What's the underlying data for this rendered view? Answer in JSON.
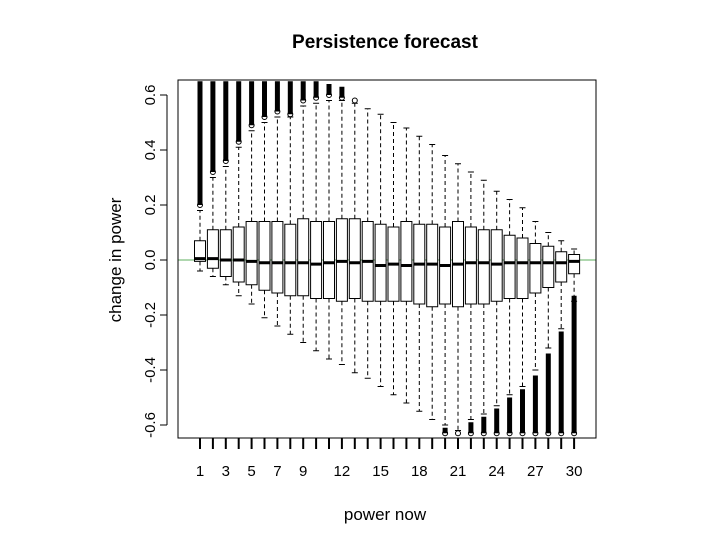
{
  "chart_data": {
    "type": "boxplot",
    "title": "Persistence forecast",
    "xlabel": "power now",
    "ylabel": "change in power",
    "categories": [
      "1",
      "2",
      "3",
      "4",
      "5",
      "6",
      "7",
      "8",
      "9",
      "10",
      "11",
      "12",
      "13",
      "14",
      "15",
      "16",
      "17",
      "18",
      "19",
      "20",
      "21",
      "22",
      "23",
      "24",
      "25",
      "26",
      "27",
      "28",
      "29",
      "30"
    ],
    "x_tick_labels": [
      "1",
      "3",
      "5",
      "7",
      "9",
      "12",
      "15",
      "18",
      "21",
      "24",
      "27",
      "30"
    ],
    "y_ticks": [
      "-0.6",
      "-0.4",
      "-0.2",
      "0.0",
      "0.2",
      "0.4",
      "0.6"
    ],
    "ylim": [
      -0.65,
      0.65
    ],
    "reference_line": {
      "value": 0.0,
      "color": "#7fbf7f"
    },
    "boxes": [
      {
        "cat": "1",
        "q1": -0.005,
        "median": 0.005,
        "q3": 0.07,
        "wlo": -0.04,
        "whi": 0.18,
        "out_lo": [],
        "out_hi": [
          0.2,
          0.65
        ]
      },
      {
        "cat": "2",
        "q1": -0.03,
        "median": 0.005,
        "q3": 0.11,
        "wlo": -0.06,
        "whi": 0.3,
        "out_lo": [],
        "out_hi": [
          0.32,
          0.65
        ]
      },
      {
        "cat": "3",
        "q1": -0.06,
        "median": 0.0,
        "q3": 0.11,
        "wlo": -0.09,
        "whi": 0.34,
        "out_lo": [],
        "out_hi": [
          0.36,
          0.65
        ]
      },
      {
        "cat": "4",
        "q1": -0.08,
        "median": 0.0,
        "q3": 0.12,
        "wlo": -0.13,
        "whi": 0.41,
        "out_lo": [],
        "out_hi": [
          0.43,
          0.65
        ]
      },
      {
        "cat": "5",
        "q1": -0.09,
        "median": -0.005,
        "q3": 0.14,
        "wlo": -0.16,
        "whi": 0.47,
        "out_lo": [],
        "out_hi": [
          0.49,
          0.65
        ]
      },
      {
        "cat": "6",
        "q1": -0.11,
        "median": -0.01,
        "q3": 0.14,
        "wlo": -0.21,
        "whi": 0.5,
        "out_lo": [],
        "out_hi": [
          0.52,
          0.65
        ]
      },
      {
        "cat": "7",
        "q1": -0.12,
        "median": -0.01,
        "q3": 0.14,
        "wlo": -0.24,
        "whi": 0.52,
        "out_lo": [],
        "out_hi": [
          0.54,
          0.65
        ]
      },
      {
        "cat": "8",
        "q1": -0.13,
        "median": -0.01,
        "q3": 0.13,
        "wlo": -0.27,
        "whi": 0.52,
        "out_lo": [],
        "out_hi": [
          0.53,
          0.65
        ]
      },
      {
        "cat": "9",
        "q1": -0.13,
        "median": -0.01,
        "q3": 0.15,
        "wlo": -0.3,
        "whi": 0.56,
        "out_lo": [],
        "out_hi": [
          0.58,
          0.65
        ]
      },
      {
        "cat": "10",
        "q1": -0.14,
        "median": -0.015,
        "q3": 0.14,
        "wlo": -0.33,
        "whi": 0.57,
        "out_lo": [],
        "out_hi": [
          0.59,
          0.65
        ]
      },
      {
        "cat": "11",
        "q1": -0.14,
        "median": -0.01,
        "q3": 0.14,
        "wlo": -0.36,
        "whi": 0.58,
        "out_lo": [],
        "out_hi": [
          0.6,
          0.64
        ]
      },
      {
        "cat": "12",
        "q1": -0.15,
        "median": -0.005,
        "q3": 0.15,
        "wlo": -0.38,
        "whi": 0.58,
        "out_lo": [],
        "out_hi": [
          0.59,
          0.63
        ]
      },
      {
        "cat": "13",
        "q1": -0.14,
        "median": -0.01,
        "q3": 0.15,
        "wlo": -0.41,
        "whi": 0.57,
        "out_lo": [],
        "out_hi": [
          0.58
        ]
      },
      {
        "cat": "14",
        "q1": -0.15,
        "median": -0.005,
        "q3": 0.14,
        "wlo": -0.43,
        "whi": 0.55,
        "out_lo": [],
        "out_hi": []
      },
      {
        "cat": "15",
        "q1": -0.15,
        "median": -0.02,
        "q3": 0.13,
        "wlo": -0.46,
        "whi": 0.53,
        "out_lo": [],
        "out_hi": []
      },
      {
        "cat": "16",
        "q1": -0.15,
        "median": -0.015,
        "q3": 0.12,
        "wlo": -0.49,
        "whi": 0.5,
        "out_lo": [],
        "out_hi": []
      },
      {
        "cat": "17",
        "q1": -0.15,
        "median": -0.02,
        "q3": 0.14,
        "wlo": -0.52,
        "whi": 0.48,
        "out_lo": [],
        "out_hi": []
      },
      {
        "cat": "18",
        "q1": -0.16,
        "median": -0.015,
        "q3": 0.13,
        "wlo": -0.55,
        "whi": 0.45,
        "out_lo": [],
        "out_hi": []
      },
      {
        "cat": "19",
        "q1": -0.17,
        "median": -0.015,
        "q3": 0.13,
        "wlo": -0.58,
        "whi": 0.42,
        "out_lo": [],
        "out_hi": []
      },
      {
        "cat": "20",
        "q1": -0.16,
        "median": -0.02,
        "q3": 0.12,
        "wlo": -0.6,
        "whi": 0.38,
        "out_lo": [
          -0.61,
          -0.63
        ],
        "out_hi": []
      },
      {
        "cat": "21",
        "q1": -0.17,
        "median": -0.015,
        "q3": 0.14,
        "wlo": -0.62,
        "whi": 0.35,
        "out_lo": [
          -0.63
        ],
        "out_hi": []
      },
      {
        "cat": "22",
        "q1": -0.16,
        "median": -0.01,
        "q3": 0.12,
        "wlo": -0.58,
        "whi": 0.32,
        "out_lo": [
          -0.59,
          -0.63
        ],
        "out_hi": []
      },
      {
        "cat": "23",
        "q1": -0.16,
        "median": -0.01,
        "q3": 0.11,
        "wlo": -0.56,
        "whi": 0.29,
        "out_lo": [
          -0.57,
          -0.63
        ],
        "out_hi": []
      },
      {
        "cat": "24",
        "q1": -0.15,
        "median": -0.015,
        "q3": 0.11,
        "wlo": -0.53,
        "whi": 0.25,
        "out_lo": [
          -0.54,
          -0.63
        ],
        "out_hi": []
      },
      {
        "cat": "25",
        "q1": -0.14,
        "median": -0.01,
        "q3": 0.09,
        "wlo": -0.49,
        "whi": 0.22,
        "out_lo": [
          -0.5,
          -0.63
        ],
        "out_hi": []
      },
      {
        "cat": "26",
        "q1": -0.14,
        "median": -0.01,
        "q3": 0.08,
        "wlo": -0.46,
        "whi": 0.19,
        "out_lo": [
          -0.47,
          -0.63
        ],
        "out_hi": []
      },
      {
        "cat": "27",
        "q1": -0.12,
        "median": -0.01,
        "q3": 0.06,
        "wlo": -0.4,
        "whi": 0.14,
        "out_lo": [
          -0.42,
          -0.63
        ],
        "out_hi": []
      },
      {
        "cat": "28",
        "q1": -0.1,
        "median": -0.01,
        "q3": 0.05,
        "wlo": -0.32,
        "whi": 0.1,
        "out_lo": [
          -0.34,
          -0.63
        ],
        "out_hi": []
      },
      {
        "cat": "29",
        "q1": -0.08,
        "median": -0.01,
        "q3": 0.03,
        "wlo": -0.25,
        "whi": 0.07,
        "out_lo": [
          -0.26,
          -0.63
        ],
        "out_hi": []
      },
      {
        "cat": "30",
        "q1": -0.05,
        "median": -0.005,
        "q3": 0.02,
        "wlo": -0.15,
        "whi": 0.04,
        "out_lo": [
          -0.13,
          -0.63
        ],
        "out_hi": []
      }
    ],
    "grid": false,
    "legend": "none"
  }
}
